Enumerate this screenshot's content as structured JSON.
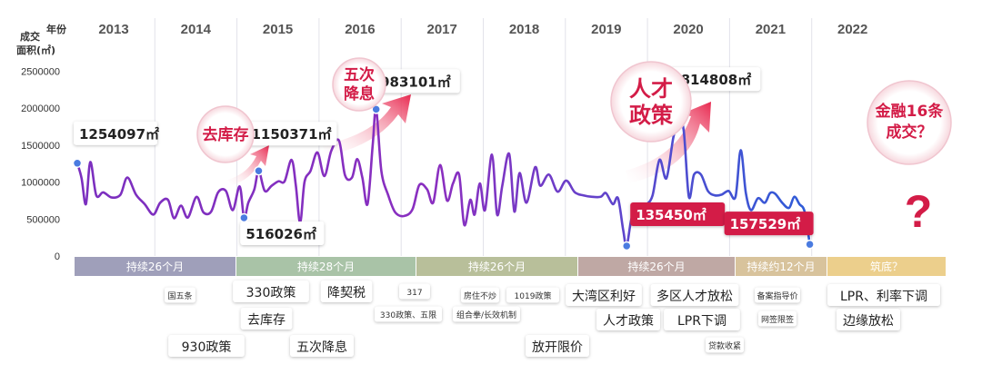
{
  "chart_data": {
    "type": "line",
    "y_axis_caption_1": "成交",
    "y_axis_caption_2": "面积(㎡)",
    "x_axis_caption": "年份",
    "years": [
      "2013",
      "2014",
      "2015",
      "2016",
      "2017",
      "2018",
      "2019",
      "2020",
      "2021",
      "2022"
    ],
    "y_ticks": [
      "2500000",
      "2000000",
      "1500000",
      "1000000",
      "500000",
      "0"
    ],
    "ylim": [
      0,
      2500000
    ],
    "x_range": [
      2013.0,
      2022.58
    ],
    "grid": false,
    "series_values": [
      [
        2013.0,
        1254097
      ],
      [
        2013.05,
        1050000
      ],
      [
        2013.1,
        700000
      ],
      [
        2013.15,
        1270000
      ],
      [
        2013.22,
        820000
      ],
      [
        2013.3,
        860000
      ],
      [
        2013.4,
        790000
      ],
      [
        2013.5,
        830000
      ],
      [
        2013.58,
        1060000
      ],
      [
        2013.68,
        830000
      ],
      [
        2013.78,
        700000
      ],
      [
        2013.88,
        560000
      ],
      [
        2013.96,
        720000
      ],
      [
        2014.05,
        760000
      ],
      [
        2014.12,
        510000
      ],
      [
        2014.2,
        680000
      ],
      [
        2014.28,
        520000
      ],
      [
        2014.38,
        800000
      ],
      [
        2014.46,
        590000
      ],
      [
        2014.55,
        600000
      ],
      [
        2014.63,
        860000
      ],
      [
        2014.72,
        880000
      ],
      [
        2014.8,
        620000
      ],
      [
        2014.88,
        940000
      ],
      [
        2014.93,
        516026
      ],
      [
        2014.98,
        720000
      ],
      [
        2015.05,
        900000
      ],
      [
        2015.1,
        1150371
      ],
      [
        2015.17,
        880000
      ],
      [
        2015.25,
        950000
      ],
      [
        2015.33,
        1010000
      ],
      [
        2015.4,
        1010000
      ],
      [
        2015.48,
        1300000
      ],
      [
        2015.53,
        960000
      ],
      [
        2015.58,
        450000
      ],
      [
        2015.63,
        1000000
      ],
      [
        2015.7,
        1150000
      ],
      [
        2015.78,
        1400000
      ],
      [
        2015.86,
        1080000
      ],
      [
        2015.94,
        1420000
      ],
      [
        2016.03,
        1560000
      ],
      [
        2016.1,
        1090000
      ],
      [
        2016.18,
        1060000
      ],
      [
        2016.24,
        1310000
      ],
      [
        2016.3,
        1060000
      ],
      [
        2016.36,
        700000
      ],
      [
        2016.42,
        1500000
      ],
      [
        2016.46,
        1983101
      ],
      [
        2016.52,
        1150000
      ],
      [
        2016.6,
        820000
      ],
      [
        2016.68,
        590000
      ],
      [
        2016.78,
        540000
      ],
      [
        2016.88,
        630000
      ],
      [
        2016.96,
        960000
      ],
      [
        2017.05,
        900000
      ],
      [
        2017.12,
        720000
      ],
      [
        2017.2,
        1230000
      ],
      [
        2017.28,
        750000
      ],
      [
        2017.35,
        980000
      ],
      [
        2017.42,
        1100000
      ],
      [
        2017.48,
        420000
      ],
      [
        2017.55,
        760000
      ],
      [
        2017.6,
        560000
      ],
      [
        2017.66,
        980000
      ],
      [
        2017.72,
        620000
      ],
      [
        2017.8,
        1370000
      ],
      [
        2017.86,
        560000
      ],
      [
        2017.92,
        950000
      ],
      [
        2018.0,
        1380000
      ],
      [
        2018.06,
        600000
      ],
      [
        2018.12,
        1120000
      ],
      [
        2018.2,
        720000
      ],
      [
        2018.3,
        1200000
      ],
      [
        2018.36,
        950000
      ],
      [
        2018.46,
        1100000
      ],
      [
        2018.56,
        870000
      ],
      [
        2018.66,
        1020000
      ],
      [
        2018.76,
        860000
      ],
      [
        2018.86,
        820000
      ],
      [
        2018.96,
        800000
      ],
      [
        2019.06,
        800000
      ],
      [
        2019.12,
        850000
      ],
      [
        2019.2,
        700000
      ],
      [
        2019.26,
        780000
      ],
      [
        2019.32,
        350000
      ],
      [
        2019.36,
        135450
      ],
      [
        2019.42,
        520000
      ],
      [
        2019.5,
        550000
      ],
      [
        2019.58,
        680000
      ],
      [
        2019.66,
        820000
      ],
      [
        2019.74,
        1300000
      ],
      [
        2019.82,
        1050000
      ],
      [
        2019.9,
        1600000
      ],
      [
        2019.96,
        1814808
      ],
      [
        2020.02,
        1700000
      ],
      [
        2020.08,
        800000
      ],
      [
        2020.14,
        1100000
      ],
      [
        2020.22,
        1100000
      ],
      [
        2020.3,
        880000
      ],
      [
        2020.38,
        820000
      ],
      [
        2020.46,
        830000
      ],
      [
        2020.54,
        880000
      ],
      [
        2020.62,
        800000
      ],
      [
        2020.68,
        1430000
      ],
      [
        2020.74,
        850000
      ],
      [
        2020.8,
        620000
      ],
      [
        2020.88,
        780000
      ],
      [
        2020.96,
        720000
      ],
      [
        2021.02,
        850000
      ],
      [
        2021.08,
        840000
      ],
      [
        2021.16,
        720000
      ],
      [
        2021.24,
        650000
      ],
      [
        2021.3,
        800000
      ],
      [
        2021.36,
        700000
      ],
      [
        2021.42,
        600000
      ],
      [
        2021.48,
        157529
      ]
    ],
    "highlighted_points": [
      {
        "x": 2013.0,
        "y": 1254097,
        "label": "1254097㎡"
      },
      {
        "x": 2014.93,
        "y": 516026,
        "label": "516026㎡"
      },
      {
        "x": 2015.1,
        "y": 1150371,
        "label": "1150371㎡"
      },
      {
        "x": 2016.46,
        "y": 1983101,
        "label": "1983101㎡"
      },
      {
        "x": 2019.36,
        "y": 135450,
        "label": "135450㎡"
      },
      {
        "x": 2019.96,
        "y": 1814808,
        "label": "1814808㎡"
      },
      {
        "x": 2021.48,
        "y": 157529,
        "label": "157529㎡"
      }
    ],
    "annotations": {
      "bubble_1": "去库存",
      "bubble_2_line1": "五次",
      "bubble_2_line2": "降息",
      "bubble_3_line1": "人才",
      "bubble_3_line2": "政策",
      "bubble_4_line1": "金融16条",
      "bubble_4_line2": "成交？",
      "question_mark": "?"
    },
    "periods": [
      {
        "label": "持续26个月",
        "color": "#9f9fba"
      },
      {
        "label": "持续28个月",
        "color": "#a9c3a7"
      },
      {
        "label": "持续26个月",
        "color": "#b8bf9a"
      },
      {
        "label": "持续26个月",
        "color": "#bfa8a4"
      },
      {
        "label": "持续约12个月",
        "color": "#d8c39c"
      },
      {
        "label": "筑底？",
        "color": "#eccf8c"
      }
    ],
    "policies": [
      {
        "text": "国五条",
        "size": "small"
      },
      {
        "text": "930政策",
        "size": "big"
      },
      {
        "text": "330政策",
        "size": "big"
      },
      {
        "text": "去库存",
        "size": "big"
      },
      {
        "text": "五次降息",
        "size": "big"
      },
      {
        "text": "降契税",
        "size": "big"
      },
      {
        "text": "317",
        "size": "small"
      },
      {
        "text": "330政策、五限",
        "size": "small"
      },
      {
        "text": "房住不炒",
        "size": "small"
      },
      {
        "text": "1019政策",
        "size": "small"
      },
      {
        "text": "组合拳/长效机制",
        "size": "small"
      },
      {
        "text": "放开限价",
        "size": "big"
      },
      {
        "text": "大湾区利好",
        "size": "big"
      },
      {
        "text": "多区人才放松",
        "size": "big"
      },
      {
        "text": "人才政策",
        "size": "big"
      },
      {
        "text": "LPR下调",
        "size": "big"
      },
      {
        "text": "贷款收紧",
        "size": "small"
      },
      {
        "text": "备案指导价",
        "size": "small"
      },
      {
        "text": "网签限签",
        "size": "small"
      },
      {
        "text": "LPR、利率下调",
        "size": "big"
      },
      {
        "text": "边缘放松",
        "size": "big"
      }
    ]
  },
  "colors": {
    "line_start": "#7b2fbf",
    "line_end": "#2e5cd8",
    "accent_red": "#d31c47",
    "marker": "#4a7be0"
  }
}
